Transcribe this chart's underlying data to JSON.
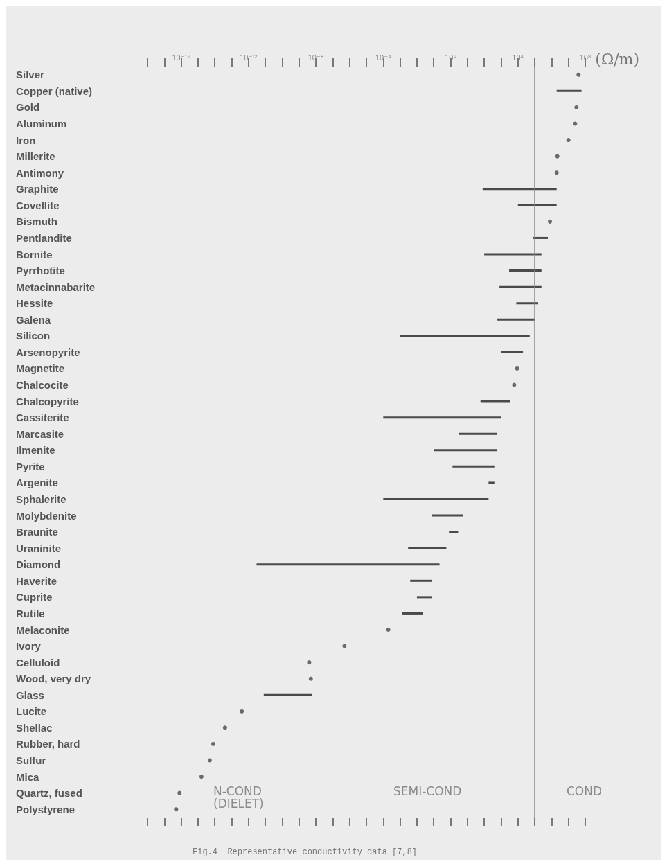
{
  "chart_data": {
    "type": "bar",
    "orientation": "horizontal",
    "log": "x",
    "xlabel": "(Ω/m)",
    "categories": [
      "Silver",
      "Copper (native)",
      "Gold",
      "Aluminum",
      "Iron",
      "Millerite",
      "Antimony",
      "Graphite",
      "Covellite",
      "Bismuth",
      "Pentlandite",
      "Bornite",
      "Pyrrhotite",
      "Metacinnabarite",
      "Hessite",
      "Galena",
      "Silicon",
      "Arsenopyrite",
      "Magnetite",
      "Chalcocite",
      "Chalcopyrite",
      "Cassiterite",
      "Marcasite",
      "Ilmenite",
      "Pyrite",
      "Argenite",
      "Sphalerite",
      "Molybdenite",
      "Braunite",
      "Uraninite",
      "Diamond",
      "Haverite",
      "Cuprite",
      "Rutile",
      "Melaconite",
      "Ivory",
      "Celluloid",
      "Wood, very dry",
      "Glass",
      "Lucite",
      "Shellac",
      "Rubber, hard",
      "Sulfur",
      "Mica",
      "Quartz, fused",
      "Polystyrene"
    ],
    "series": [
      {
        "type": "bar",
        "color": "#4a4a4a",
        "base": [
          null,
          2000000.0,
          null,
          null,
          null,
          null,
          null,
          80,
          10000.0,
          null,
          80000.0,
          100,
          3000.0,
          800,
          8000.0,
          600,
          0.001,
          1000.0,
          null,
          null,
          60,
          0.0001,
          3,
          0.1,
          1.3,
          180,
          0.0001,
          0.08,
          0.8,
          0.003,
          3e-12,
          0.004,
          0.01,
          0.0013,
          null,
          null,
          null,
          null,
          8e-12,
          null,
          null,
          null,
          null,
          null,
          null,
          null
        ],
        "values": [
          null,
          58000000.0,
          null,
          null,
          null,
          null,
          null,
          2000000.0,
          1990000.0,
          null,
          520000.0,
          250000.0,
          247000.0,
          249000.0,
          152000.0,
          99400.0,
          50000.0,
          19000.0,
          null,
          null,
          3440,
          1000,
          597,
          600,
          399,
          220,
          180,
          5.52,
          2,
          0.557,
          0.22,
          0.076,
          0.07,
          0.0207,
          null,
          null,
          null,
          null,
          5.99e-09,
          null,
          null,
          null,
          null,
          null,
          null,
          null
        ]
      },
      {
        "type": "scatter",
        "color": "#4a4a4a",
        "values": [
          40000000.0,
          null,
          30000000.0,
          25000000.0,
          10000000.0,
          2200000.0,
          2000000.0,
          null,
          null,
          800000.0,
          null,
          null,
          null,
          null,
          null,
          null,
          null,
          null,
          9000.0,
          6000.0,
          null,
          null,
          null,
          null,
          null,
          null,
          null,
          null,
          null,
          null,
          null,
          null,
          null,
          null,
          0.0002,
          5e-07,
          4e-09,
          5e-09,
          null,
          4e-13,
          4e-14,
          8e-15,
          5e-15,
          1.6e-15,
          8e-17,
          5e-17
        ]
      }
    ],
    "marker": "circle",
    "xlim": [
      1e-18,
      100000000.0
    ],
    "xticks": [
      {
        "value": 1e-18,
        "label": null
      },
      {
        "value": 1e-17,
        "label": null
      },
      {
        "value": 1e-16,
        "label": "10⁻¹⁶"
      },
      {
        "value": 1e-15,
        "label": null
      },
      {
        "value": 1e-14,
        "label": null
      },
      {
        "value": 1e-13,
        "label": null
      },
      {
        "value": 1e-12,
        "label": "10⁻¹²"
      },
      {
        "value": 1e-11,
        "label": null
      },
      {
        "value": 1e-10,
        "label": null
      },
      {
        "value": 1e-09,
        "label": null
      },
      {
        "value": 1e-08,
        "label": "10⁻⁸"
      },
      {
        "value": 1e-07,
        "label": null
      },
      {
        "value": 1e-06,
        "label": null
      },
      {
        "value": 1e-05,
        "label": null
      },
      {
        "value": 0.0001,
        "label": "10⁻⁴"
      },
      {
        "value": 0.001,
        "label": null
      },
      {
        "value": 0.01,
        "label": null
      },
      {
        "value": 0.1,
        "label": null
      },
      {
        "value": 1,
        "label": "10⁰"
      },
      {
        "value": 10,
        "label": null
      },
      {
        "value": 100,
        "label": null
      },
      {
        "value": 1000,
        "label": null
      },
      {
        "value": 10000.0,
        "label": "10⁴"
      },
      {
        "value": 100000.0,
        "label": null
      },
      {
        "value": 1000000.0,
        "label": null
      },
      {
        "value": 10000000.0,
        "label": null
      },
      {
        "value": 100000000.0,
        "label": "10⁸"
      }
    ],
    "ref_lines": [
      {
        "axis": "x",
        "value": 100000.0,
        "color": "#8a8a8a"
      }
    ],
    "annotations": [
      "N-COND\n(DIELET)",
      "SEMI-COND",
      "COND",
      "Fig.4  Representative conductivity data [7,8]"
    ],
    "grid": false
  }
}
